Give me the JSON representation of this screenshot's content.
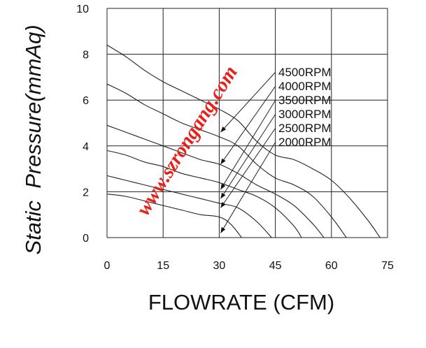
{
  "chart_data": {
    "type": "line",
    "xlabel": "FLOWRATE (CFM)",
    "ylabel": "Static  Pressure(mmAq)",
    "xlim": [
      0,
      75
    ],
    "ylim": [
      0,
      10
    ],
    "x_ticks": [
      "0",
      "15",
      "30",
      "45",
      "60",
      "75"
    ],
    "y_ticks": [
      "0",
      "2",
      "4",
      "6",
      "8",
      "10"
    ],
    "grid": true,
    "legend_placement": "right, inside plot with leader arrows",
    "series": [
      {
        "name": "4500RPM",
        "x": [
          0,
          5,
          10,
          15,
          20,
          25,
          30,
          35,
          40,
          45,
          50,
          55,
          60,
          65,
          70,
          73
        ],
        "y": [
          8.4,
          7.9,
          7.3,
          6.8,
          6.4,
          6.0,
          5.6,
          5.1,
          4.2,
          3.6,
          3.4,
          3.0,
          2.5,
          1.7,
          0.7,
          0.0
        ]
      },
      {
        "name": "4000RPM",
        "x": [
          0,
          5,
          10,
          15,
          20,
          25,
          30,
          35,
          40,
          45,
          50,
          55,
          60,
          64
        ],
        "y": [
          6.7,
          6.3,
          5.8,
          5.4,
          5.0,
          4.7,
          4.4,
          4.0,
          3.2,
          2.6,
          2.3,
          1.8,
          0.9,
          0.0
        ]
      },
      {
        "name": "3500RPM",
        "x": [
          0,
          5,
          10,
          15,
          20,
          25,
          30,
          35,
          40,
          45,
          50,
          55,
          58
        ],
        "y": [
          4.9,
          4.6,
          4.3,
          4.0,
          3.7,
          3.4,
          3.2,
          2.8,
          2.3,
          1.9,
          1.4,
          0.6,
          0.0
        ]
      },
      {
        "name": "3000RPM",
        "x": [
          0,
          5,
          10,
          15,
          20,
          25,
          30,
          35,
          40,
          45,
          50,
          52
        ],
        "y": [
          3.8,
          3.6,
          3.3,
          3.1,
          2.8,
          2.6,
          2.4,
          2.1,
          1.8,
          1.3,
          0.5,
          0.0
        ]
      },
      {
        "name": "2500RPM",
        "x": [
          0,
          5,
          10,
          15,
          20,
          25,
          30,
          35,
          40,
          44
        ],
        "y": [
          2.7,
          2.5,
          2.3,
          2.1,
          1.9,
          1.7,
          1.5,
          1.3,
          0.7,
          0.0
        ]
      },
      {
        "name": "2000RPM",
        "x": [
          0,
          5,
          10,
          15,
          20,
          25,
          30,
          33,
          36
        ],
        "y": [
          1.9,
          1.8,
          1.6,
          1.4,
          1.2,
          1.0,
          0.9,
          0.6,
          0.0
        ]
      }
    ],
    "leader_arrow_tips": [
      {
        "x": 30,
        "y": 4.6
      },
      {
        "x": 30,
        "y": 3.2
      },
      {
        "x": 30,
        "y": 2.1
      },
      {
        "x": 30,
        "y": 1.7
      },
      {
        "x": 30,
        "y": 1.3
      },
      {
        "x": 30,
        "y": 0.2
      }
    ]
  },
  "watermark": {
    "text": "www.szrongang.com",
    "color": "#e8201a"
  }
}
